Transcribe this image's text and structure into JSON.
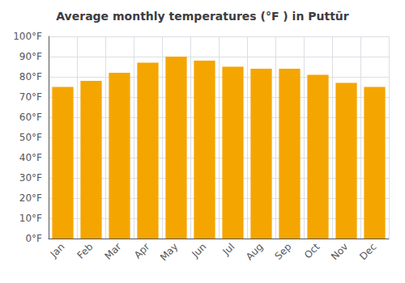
{
  "chart_data": {
    "type": "bar",
    "title": "Average monthly temperatures (°F ) in Puttūr",
    "categories": [
      "Jan",
      "Feb",
      "Mar",
      "Apr",
      "May",
      "Jun",
      "Jul",
      "Aug",
      "Sep",
      "Oct",
      "Nov",
      "Dec"
    ],
    "values": [
      75,
      78,
      82,
      87,
      90,
      88,
      85,
      84,
      84,
      81,
      77,
      75
    ],
    "color": "#F5A500",
    "ylim": [
      0,
      100
    ],
    "yticks": [
      {
        "value": 0,
        "label": "0°F"
      },
      {
        "value": 10,
        "label": "10°F"
      },
      {
        "value": 20,
        "label": "20°F"
      },
      {
        "value": 30,
        "label": "30°F"
      },
      {
        "value": 40,
        "label": "40°F"
      },
      {
        "value": 50,
        "label": "50°F"
      },
      {
        "value": 60,
        "label": "60°F"
      },
      {
        "value": 70,
        "label": "70°F"
      },
      {
        "value": 80,
        "label": "80°F"
      },
      {
        "value": 90,
        "label": "90°F"
      },
      {
        "value": 100,
        "label": "100°F"
      }
    ],
    "grid": true
  }
}
